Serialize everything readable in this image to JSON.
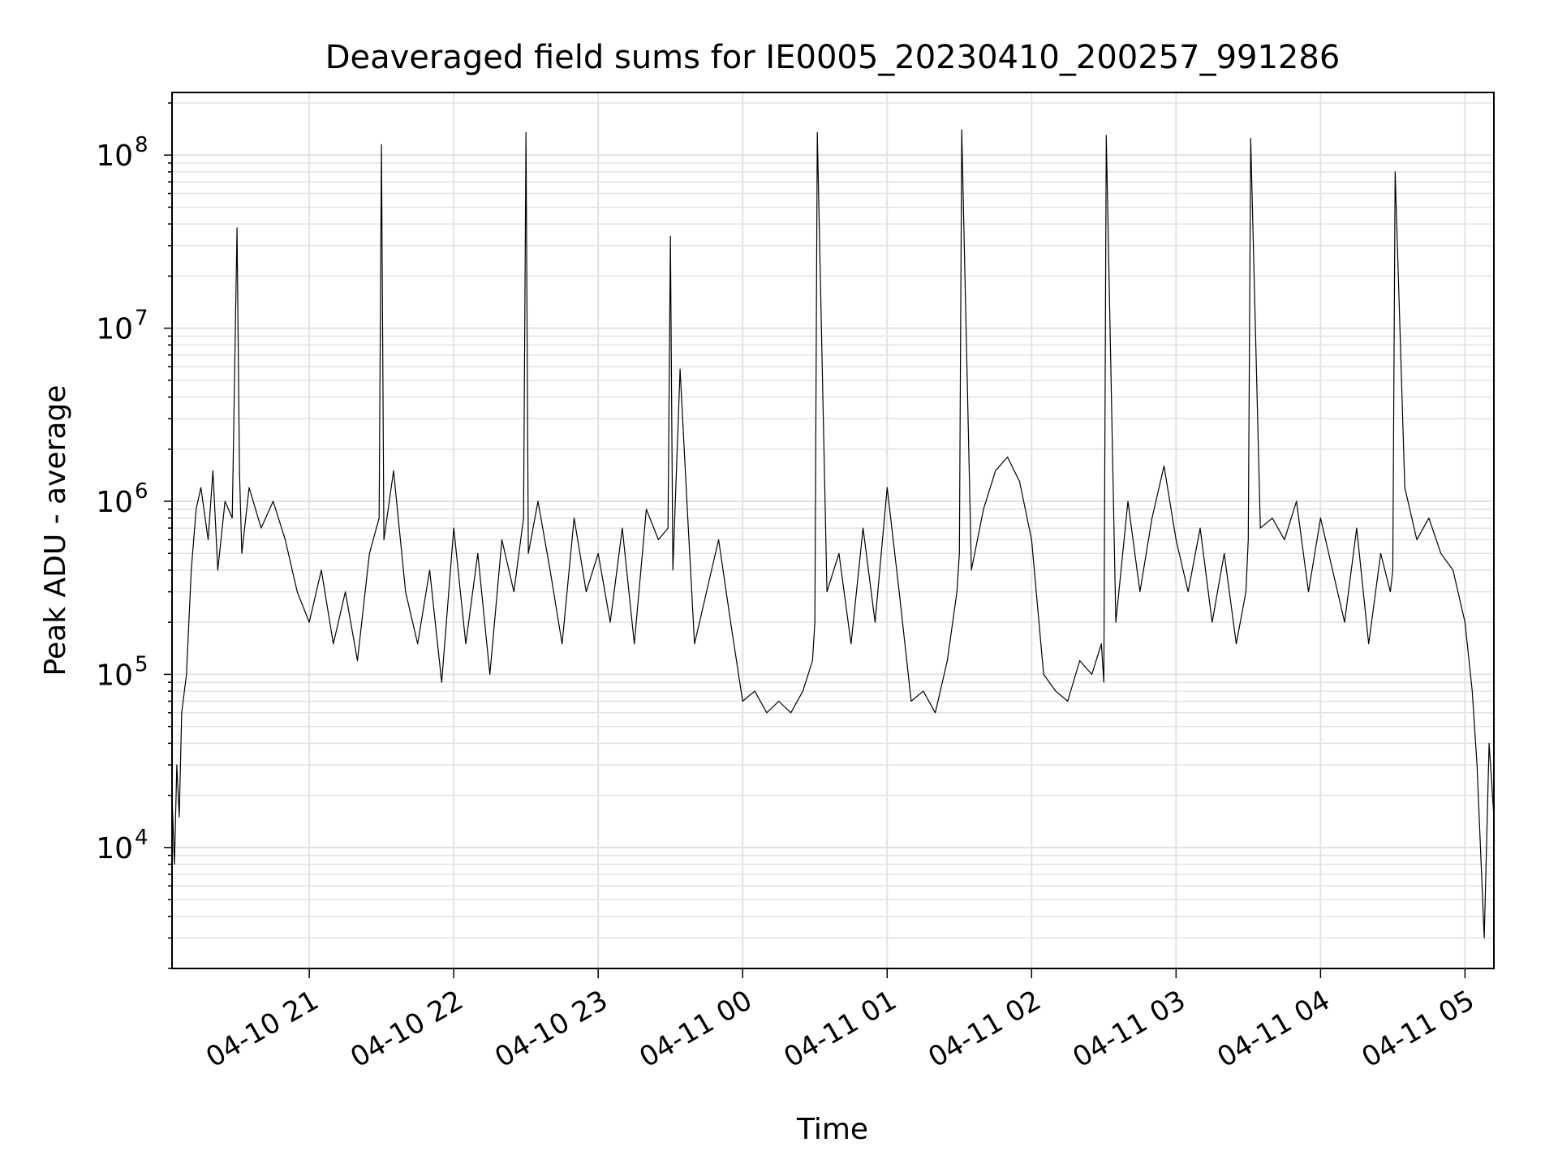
{
  "chart_data": {
    "type": "line",
    "title": "Deaveraged field sums for IE0005_20230410_200257_991286",
    "xlabel": "Time",
    "ylabel": "Peak ADU - average",
    "yscale": "log",
    "grid": true,
    "legend": "none",
    "xlim": [
      "2023-04-10 20:03",
      "2023-04-11 05:12"
    ],
    "ylim": [
      2000,
      230000000
    ],
    "x_ticks": [
      "04-10 21",
      "04-10 22",
      "04-10 23",
      "04-11 00",
      "04-11 01",
      "04-11 02",
      "04-11 03",
      "04-11 04",
      "04-11 05"
    ],
    "y_ticks": [
      {
        "base": "10",
        "exp": "4",
        "value": 10000
      },
      {
        "base": "10",
        "exp": "5",
        "value": 100000
      },
      {
        "base": "10",
        "exp": "6",
        "value": 1000000
      },
      {
        "base": "10",
        "exp": "7",
        "value": 10000000
      },
      {
        "base": "10",
        "exp": "8",
        "value": 100000000
      }
    ],
    "line_color": "#000000",
    "grid_color": "#e3e3e3",
    "series": [
      {
        "x": [
          "2023-04-10 20:03",
          "2023-04-10 20:04",
          "2023-04-10 20:05",
          "2023-04-10 20:06",
          "2023-04-10 20:07",
          "2023-04-10 20:09",
          "2023-04-10 20:11",
          "2023-04-10 20:13",
          "2023-04-10 20:15",
          "2023-04-10 20:18",
          "2023-04-10 20:20",
          "2023-04-10 20:22",
          "2023-04-10 20:25",
          "2023-04-10 20:28",
          "2023-04-10 20:30",
          "2023-04-10 20:31",
          "2023-04-10 20:32",
          "2023-04-10 20:35",
          "2023-04-10 20:40",
          "2023-04-10 20:45",
          "2023-04-10 20:50",
          "2023-04-10 20:55",
          "2023-04-10 21:00",
          "2023-04-10 21:05",
          "2023-04-10 21:10",
          "2023-04-10 21:15",
          "2023-04-10 21:20",
          "2023-04-10 21:25",
          "2023-04-10 21:29",
          "2023-04-10 21:30",
          "2023-04-10 21:31",
          "2023-04-10 21:35",
          "2023-04-10 21:40",
          "2023-04-10 21:45",
          "2023-04-10 21:50",
          "2023-04-10 21:55",
          "2023-04-10 22:00",
          "2023-04-10 22:05",
          "2023-04-10 22:10",
          "2023-04-10 22:15",
          "2023-04-10 22:20",
          "2023-04-10 22:25",
          "2023-04-10 22:29",
          "2023-04-10 22:30",
          "2023-04-10 22:31",
          "2023-04-10 22:35",
          "2023-04-10 22:40",
          "2023-04-10 22:45",
          "2023-04-10 22:50",
          "2023-04-10 22:55",
          "2023-04-10 23:00",
          "2023-04-10 23:05",
          "2023-04-10 23:10",
          "2023-04-10 23:15",
          "2023-04-10 23:20",
          "2023-04-10 23:25",
          "2023-04-10 23:29",
          "2023-04-10 23:30",
          "2023-04-10 23:31",
          "2023-04-10 23:34",
          "2023-04-10 23:37",
          "2023-04-10 23:40",
          "2023-04-10 23:45",
          "2023-04-10 23:50",
          "2023-04-10 23:55",
          "2023-04-11 00:00",
          "2023-04-11 00:05",
          "2023-04-11 00:10",
          "2023-04-11 00:15",
          "2023-04-11 00:20",
          "2023-04-11 00:25",
          "2023-04-11 00:29",
          "2023-04-11 00:30",
          "2023-04-11 00:31",
          "2023-04-11 00:35",
          "2023-04-11 00:40",
          "2023-04-11 00:45",
          "2023-04-11 00:50",
          "2023-04-11 00:55",
          "2023-04-11 01:00",
          "2023-04-11 01:05",
          "2023-04-11 01:10",
          "2023-04-11 01:15",
          "2023-04-11 01:20",
          "2023-04-11 01:25",
          "2023-04-11 01:29",
          "2023-04-11 01:30",
          "2023-04-11 01:31",
          "2023-04-11 01:35",
          "2023-04-11 01:40",
          "2023-04-11 01:45",
          "2023-04-11 01:50",
          "2023-04-11 01:55",
          "2023-04-11 02:00",
          "2023-04-11 02:05",
          "2023-04-11 02:10",
          "2023-04-11 02:15",
          "2023-04-11 02:20",
          "2023-04-11 02:25",
          "2023-04-11 02:29",
          "2023-04-11 02:30",
          "2023-04-11 02:31",
          "2023-04-11 02:35",
          "2023-04-11 02:40",
          "2023-04-11 02:45",
          "2023-04-11 02:50",
          "2023-04-11 02:55",
          "2023-04-11 03:00",
          "2023-04-11 03:05",
          "2023-04-11 03:10",
          "2023-04-11 03:15",
          "2023-04-11 03:20",
          "2023-04-11 03:25",
          "2023-04-11 03:29",
          "2023-04-11 03:30",
          "2023-04-11 03:31",
          "2023-04-11 03:35",
          "2023-04-11 03:40",
          "2023-04-11 03:45",
          "2023-04-11 03:50",
          "2023-04-11 03:55",
          "2023-04-11 04:00",
          "2023-04-11 04:05",
          "2023-04-11 04:10",
          "2023-04-11 04:15",
          "2023-04-11 04:20",
          "2023-04-11 04:25",
          "2023-04-11 04:29",
          "2023-04-11 04:30",
          "2023-04-11 04:31",
          "2023-04-11 04:35",
          "2023-04-11 04:40",
          "2023-04-11 04:45",
          "2023-04-11 04:50",
          "2023-04-11 04:55",
          "2023-04-11 05:00",
          "2023-04-11 05:03",
          "2023-04-11 05:05",
          "2023-04-11 05:08",
          "2023-04-11 05:10",
          "2023-04-11 05:12"
        ],
        "y": [
          20000,
          8000,
          30000,
          15000,
          60000,
          100000,
          400000,
          900000,
          1200000,
          600000,
          1500000,
          400000,
          1000000,
          800000,
          38000000,
          1500000,
          500000,
          1200000,
          700000,
          1000000,
          600000,
          300000,
          200000,
          400000,
          150000,
          300000,
          120000,
          500000,
          800000,
          115000000,
          600000,
          1500000,
          300000,
          150000,
          400000,
          90000,
          700000,
          150000,
          500000,
          100000,
          600000,
          300000,
          800000,
          135000000,
          500000,
          1000000,
          400000,
          150000,
          800000,
          300000,
          500000,
          200000,
          700000,
          150000,
          900000,
          600000,
          700000,
          34000000,
          400000,
          5800000,
          900000,
          150000,
          300000,
          600000,
          200000,
          70000,
          80000,
          60000,
          70000,
          60000,
          80000,
          120000,
          200000,
          135000000,
          300000,
          500000,
          150000,
          700000,
          200000,
          1200000,
          300000,
          70000,
          80000,
          60000,
          120000,
          300000,
          500000,
          140000000,
          400000,
          900000,
          1500000,
          1800000,
          1300000,
          600000,
          100000,
          80000,
          70000,
          120000,
          100000,
          150000,
          90000,
          130000000,
          200000,
          1000000,
          300000,
          800000,
          1600000,
          600000,
          300000,
          700000,
          200000,
          500000,
          150000,
          300000,
          600000,
          125000000,
          700000,
          800000,
          600000,
          1000000,
          300000,
          800000,
          400000,
          200000,
          700000,
          150000,
          500000,
          300000,
          400000,
          80000000,
          1200000,
          600000,
          800000,
          500000,
          400000,
          200000,
          80000,
          30000,
          3000,
          40000,
          15000
        ]
      }
    ]
  }
}
